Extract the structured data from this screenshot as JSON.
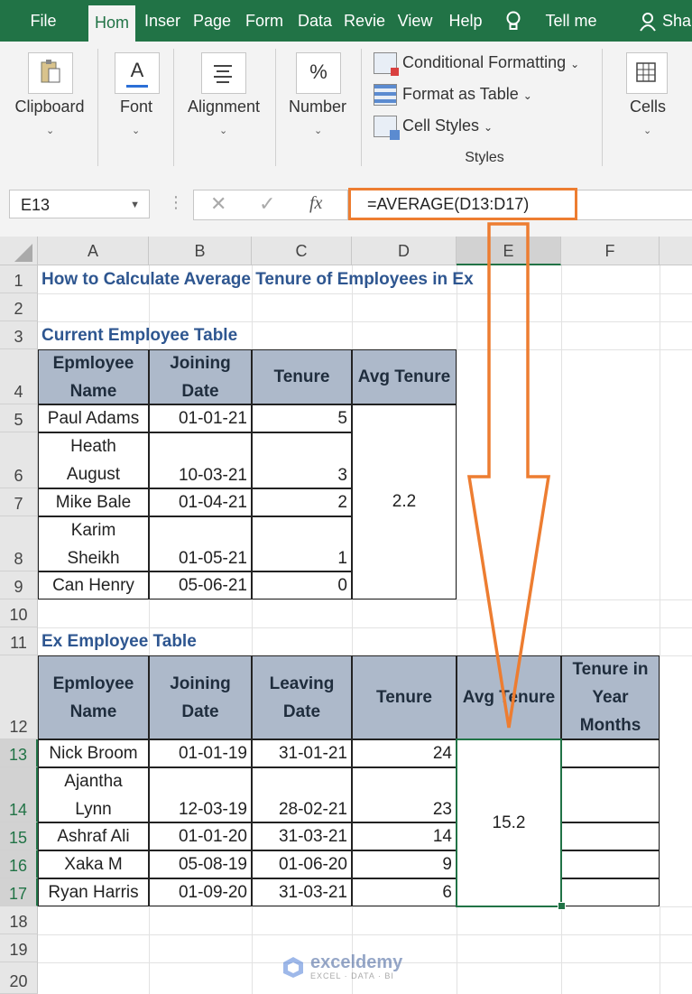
{
  "ribbon_tabs": [
    "File",
    "Hom",
    "Inser",
    "Page",
    "Form",
    "Data",
    "Revie",
    "View",
    "Help",
    "Tell me",
    "Sha"
  ],
  "ribbon": {
    "clipboard_label": "Clipboard",
    "font_label": "Font",
    "font_icon_glyph": "A",
    "alignment_label": "Alignment",
    "number_label": "Number",
    "number_icon_glyph": "%",
    "conditional_formatting": "Conditional Formatting",
    "format_as_table": "Format as Table",
    "cell_styles": "Cell Styles",
    "styles_group_label": "Styles",
    "cells_label": "Cells"
  },
  "formula_bar": {
    "name_box": "E13",
    "fx_glyph": "fx",
    "cancel_glyph": "✕",
    "enter_glyph": "✓",
    "formula": "=AVERAGE(D13:D17)"
  },
  "columns": [
    "A",
    "B",
    "C",
    "D",
    "E",
    "F"
  ],
  "rows": [
    "1",
    "2",
    "3",
    "4",
    "5",
    "6",
    "7",
    "8",
    "9",
    "10",
    "11",
    "12",
    "13",
    "14",
    "15",
    "16",
    "17",
    "18",
    "19",
    "20"
  ],
  "sheet": {
    "title": "How to Calculate Average Tenure of Employees in Ex",
    "current_table_title": "Current Employee Table",
    "current_headers": [
      "Epmloyee Name",
      "Joining Date",
      "Tenure",
      "Avg Tenure"
    ],
    "current_rows": [
      {
        "name": "Paul Adams",
        "date": "01-01-21",
        "tenure": "5"
      },
      {
        "name": "Heath August",
        "date": "10-03-21",
        "tenure": "3"
      },
      {
        "name": "Mike Bale",
        "date": "01-04-21",
        "tenure": "2"
      },
      {
        "name": "Karim Sheikh",
        "date": "01-05-21",
        "tenure": "1"
      },
      {
        "name": "Can Henry",
        "date": "05-06-21",
        "tenure": "0"
      }
    ],
    "current_avg": "2.2",
    "ex_table_title": "Ex Employee Table",
    "ex_headers": [
      "Epmloyee Name",
      "Joining Date",
      "Leaving Date",
      "Tenure",
      "Avg Tenure",
      "Tenure in Year Months"
    ],
    "ex_rows": [
      {
        "name": "Nick Broom",
        "join": "01-01-19",
        "leave": "31-01-21",
        "tenure": "24"
      },
      {
        "name": "Ajantha Lynn",
        "join": "12-03-19",
        "leave": "28-02-21",
        "tenure": "23"
      },
      {
        "name": "Ashraf Ali",
        "join": "01-01-20",
        "leave": "31-03-21",
        "tenure": "14"
      },
      {
        "name": "Xaka M",
        "join": "05-08-19",
        "leave": "01-06-20",
        "tenure": "9"
      },
      {
        "name": "Ryan Harris",
        "join": "01-09-20",
        "leave": "31-03-21",
        "tenure": "6"
      }
    ],
    "ex_avg": "15.2"
  },
  "watermark": {
    "brand": "exceldemy",
    "tagline": "EXCEL · DATA · BI"
  },
  "colors": {
    "excel_green": "#217346",
    "arrow_orange": "#ed7d31",
    "header_fill": "#adb9ca",
    "title_blue": "#2e5690"
  }
}
